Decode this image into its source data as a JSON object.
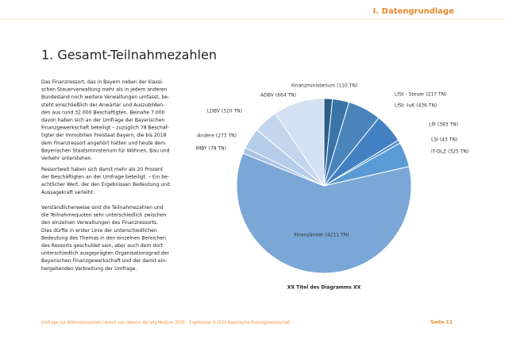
{
  "header": {
    "section": "I. Datengrundlage"
  },
  "title": "1. Gesamt-Teilnahmezahlen",
  "paragraphs": [
    [
      "Das Finanzressort, das in Bayern neben der klassi-",
      "schen Steuerverwaltung mehr als in jedem anderen",
      "Bundesland noch weitere Verwaltungen umfasst, be-",
      "steht einschließlich der Anwärter und Auszubilden-",
      "den aus rund 32.000 Beschäftigten. Beinahe 7.000",
      "davon haben sich an der Umfrage der Bayerischen",
      "Finanzgewerkschaft beteiligt – zuzüglich 78 Beschäf-",
      "tigter der Immobilien Freistaat Bayern, die bis 2018",
      "dem Finanzressort angehört hatten und heute dem",
      "Bayerischen Staatsministerium für Wohnen, Bau und",
      "Verkehr unterstehen."
    ],
    [
      "Ressortweit haben sich damit mehr als 20 Prozent",
      "der Beschäftigten an der Umfrage beteiligt. – Ein be-",
      "achtlicher Wert, der den Ergebnissen Bedeutung und",
      "Aussagekraft verleiht."
    ],
    [
      "Verständlicherweise sind die Teilnahmezahlen und",
      "die Teilnahmequoten sehr unterschiedlich zwischen",
      "den einzelnen Verwaltungen des Finanzressorts.",
      "Dies dürfte in erster Linie der unterschiedlichen",
      "Bedeutung des Themas in den einzelnen Bereichen",
      "des Ressorts geschuldet sein, aber auch dem dort",
      "unterschiedlich ausgeprägten Organisationsgrad der",
      "Bayerischen Finanzgewerkschaft und der damit ein-",
      "hergehenden Verbreitung der Umfrage."
    ]
  ],
  "chart_data": {
    "type": "pie",
    "title": "XX Titel des Diagramms XX",
    "categories": [
      "Finanzministerium (110 TN)",
      "LfSt - Steuer (217 TN)",
      "LfSt -IuK (436 TN)",
      "LfF (383 TN)",
      "LSI (43 TN)",
      "IT-DLZ (325 TN)",
      "Finanzämter (4211 TN)",
      "IMBY (78 TN)",
      "Andere (273 TN)",
      "LDBV (320 TN)",
      "ADBV (664 TN)"
    ],
    "values": [
      110,
      217,
      436,
      383,
      43,
      325,
      4211,
      78,
      273,
      320,
      664
    ],
    "colors": [
      "#2c5d88",
      "#3a74a7",
      "#4a84bb",
      "#4380c1",
      "#5590cc",
      "#5b9bd5",
      "#7ba7d7",
      "#a8c3e3",
      "#b6cde9",
      "#c4d6ed",
      "#d3e1f2"
    ]
  },
  "footer": {
    "note": "Umfrage zur Wohnraumarbeit / Arbeit von daheim der bfg Mai/Juni 2020 – Ergebnisse ©2020 Bayerische Finanzgewerkschaft",
    "page": "Seite 11"
  }
}
